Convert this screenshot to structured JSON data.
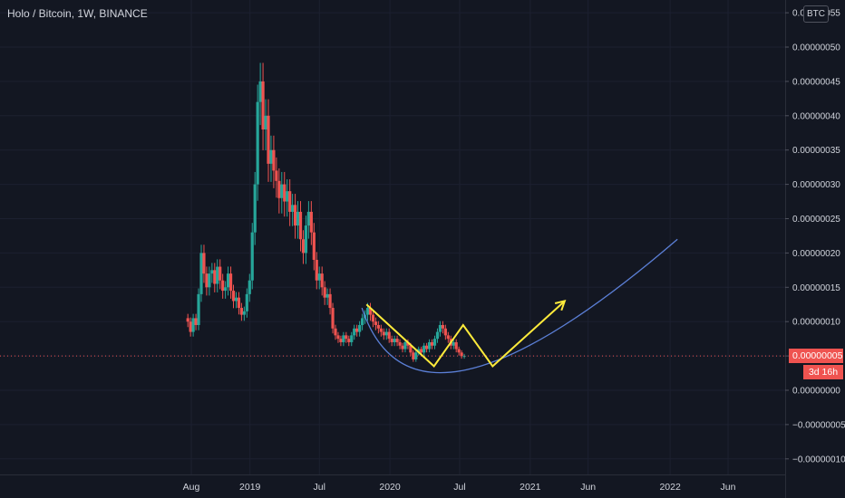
{
  "header": {
    "title": "Holo / Bitcoin, 1W, BINANCE",
    "currency": "BTC"
  },
  "price_axis": {
    "last_price_label": "0.00000005",
    "countdown_label": "3d 16h"
  },
  "colors": {
    "background": "#131722",
    "up_candle": "#26a69a",
    "down_candle": "#ef5350",
    "pattern_line": "#ffeb3b",
    "curve": "#5b7fd6",
    "last_price_line": "#ef5350"
  },
  "chart_data": {
    "type": "candlestick",
    "title": "Holo / Bitcoin, 1W, BINANCE",
    "x_ticks": [
      "Aug",
      "2019",
      "Jul",
      "2020",
      "Jul",
      "2021",
      "Jun",
      "2022",
      "Jun"
    ],
    "x_tick_dates": [
      "2018-08-01",
      "2019-01-01",
      "2019-07-01",
      "2020-01-01",
      "2020-07-01",
      "2021-01-01",
      "2021-06-01",
      "2022-01-01",
      "2022-06-01"
    ],
    "y_ticks": [
      -1e-07,
      -5e-08,
      0.0,
      5e-08,
      1e-07,
      1.5e-07,
      2e-07,
      2.5e-07,
      3e-07,
      3.5e-07,
      4e-07,
      4.5e-07,
      5e-07,
      5.5e-07
    ],
    "y_tick_labels": [
      "−0.00000010",
      "−0.00000005",
      "0.00000000",
      "0.00000005",
      "0.00000010",
      "0.00000015",
      "0.00000020",
      "0.00000025",
      "0.00000030",
      "0.00000035",
      "0.00000040",
      "0.00000045",
      "0.00000050",
      "0.00000055"
    ],
    "ylim": [
      -1.1e-07,
      5.6e-07
    ],
    "last_price": 5e-08,
    "close_series": {
      "start": "2018-07-23",
      "interval_days": 7,
      "values": [
        1e-07,
        8.5e-08,
        1.05e-07,
        9.5e-08,
        1.4e-07,
        2e-07,
        1.7e-07,
        1.5e-07,
        1.7e-07,
        1.75e-07,
        1.55e-07,
        1.8e-07,
        1.6e-07,
        1.45e-07,
        1.5e-07,
        1.7e-07,
        1.45e-07,
        1.3e-07,
        1.35e-07,
        1.2e-07,
        1.1e-07,
        1.15e-07,
        1.4e-07,
        1.6e-07,
        2.3e-07,
        3e-07,
        4.2e-07,
        4.5e-07,
        3.8e-07,
        4e-07,
        3.3e-07,
        3.5e-07,
        3.2e-07,
        3.05e-07,
        2.8e-07,
        3e-07,
        2.75e-07,
        2.9e-07,
        2.6e-07,
        2.7e-07,
        2.4e-07,
        2.6e-07,
        2.2e-07,
        2e-07,
        2.4e-07,
        2.6e-07,
        2.3e-07,
        1.9e-07,
        1.6e-07,
        1.7e-07,
        1.5e-07,
        1.35e-07,
        1.4e-07,
        1.2e-07,
        9e-08,
        8e-08,
        7.5e-08,
        7e-08,
        8e-08,
        7.5e-08,
        7e-08,
        8e-08,
        9e-08,
        8.5e-08,
        9.5e-08,
        1.05e-07,
        1.1e-07,
        1.2e-07,
        1.1e-07,
        1e-07,
        9.5e-08,
        9e-08,
        8.5e-08,
        8e-08,
        8.5e-08,
        7.5e-08,
        7e-08,
        7.5e-08,
        7e-08,
        6.5e-08,
        6e-08,
        7e-08,
        6.5e-08,
        5.5e-08,
        4.5e-08,
        5.5e-08,
        6e-08,
        5.5e-08,
        6.5e-08,
        6e-08,
        7e-08,
        6.5e-08,
        7.5e-08,
        8.5e-08,
        9.5e-08,
        9e-08,
        8e-08,
        7.5e-08,
        6.5e-08,
        7e-08,
        6e-08,
        5.5e-08,
        5e-08,
        5e-08
      ]
    },
    "pattern_points": [
      {
        "date": "2019-11-01",
        "value": 1.25e-07
      },
      {
        "date": "2020-04-25",
        "value": 3.5e-08
      },
      {
        "date": "2020-07-10",
        "value": 9.5e-08
      },
      {
        "date": "2020-09-25",
        "value": 3.5e-08
      },
      {
        "date": "2021-04-01",
        "value": 1.3e-07
      }
    ],
    "curve_points": [
      {
        "date": "2019-10-20",
        "value": 1.2e-07
      },
      {
        "date": "2020-07-20",
        "value": 3e-08
      },
      {
        "date": "2022-01-20",
        "value": 2.2e-07
      }
    ]
  }
}
